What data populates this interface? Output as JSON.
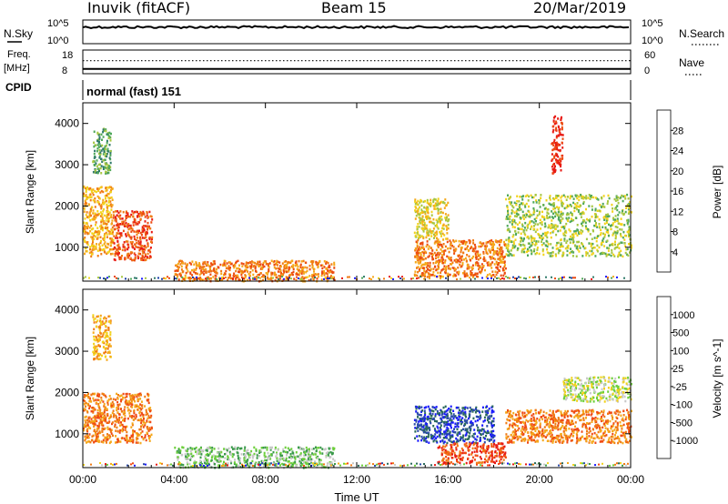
{
  "header": {
    "title_left": "Inuvik (fitACF)",
    "title_center": "Beam 15",
    "title_right": "20/Mar/2019"
  },
  "panels": {
    "nsky": {
      "left_label": "N.Sky",
      "right_label": "N.Search",
      "left_ticks": [
        "10^5",
        "10^0"
      ],
      "right_ticks": [
        "10^5",
        "10^0"
      ],
      "trace_level": 0.7
    },
    "freq": {
      "left_label_line1": "Freq.",
      "left_label_line2": "[MHz]",
      "right_label": "Nave",
      "left_ticks": [
        "18",
        "8"
      ],
      "right_ticks": [
        "60",
        "0"
      ],
      "freq_level": 0.2,
      "nave_level": 0.55
    },
    "cpid": {
      "left_label": "CPID",
      "mode_text": "normal (fast) 151"
    }
  },
  "chart_data": [
    {
      "type": "heatmap",
      "title": "",
      "xlabel": "Time UT",
      "ylabel": "Slant Range [km]",
      "x_ticks": [
        "00:00",
        "04:00",
        "08:00",
        "12:00",
        "16:00",
        "20:00",
        "00:00"
      ],
      "y_ticks": [
        1000,
        2000,
        3000,
        4000
      ],
      "xlim_hours": [
        0,
        24
      ],
      "ylim_km": [
        180,
        4500
      ],
      "colorbar": {
        "label": "Power [dB]",
        "ticks": [
          "28",
          "24",
          "20",
          "16",
          "12",
          "8",
          "4"
        ],
        "colors": [
          "#1a1aff",
          "#1a3fa8",
          "#2f7a6a",
          "#4fa85a",
          "#a6c640",
          "#f2d21a",
          "#f5a81a",
          "#f07a14",
          "#ec4a10",
          "#e81a14"
        ]
      },
      "regions": [
        {
          "x": [
            0,
            1.3
          ],
          "y": [
            800,
            2500
          ],
          "level": 6
        },
        {
          "x": [
            1.3,
            3.0
          ],
          "y": [
            700,
            1900
          ],
          "level": 8
        },
        {
          "x": [
            0.4,
            1.2
          ],
          "y": [
            2800,
            3900
          ],
          "level": 3
        },
        {
          "x": [
            4.0,
            11.0
          ],
          "y": [
            200,
            700
          ],
          "level": 7
        },
        {
          "x": [
            14.5,
            18.5
          ],
          "y": [
            300,
            1200
          ],
          "level": 7
        },
        {
          "x": [
            14.5,
            16.0
          ],
          "y": [
            1200,
            2200
          ],
          "level": 5
        },
        {
          "x": [
            18.5,
            24.0
          ],
          "y": [
            800,
            2300
          ],
          "level": 4
        },
        {
          "x": [
            20.5,
            21.0
          ],
          "y": [
            2800,
            4200
          ],
          "level": 9
        }
      ]
    },
    {
      "type": "heatmap",
      "title": "",
      "xlabel": "Time UT",
      "ylabel": "Slant Range [km]",
      "x_ticks": [
        "00:00",
        "04:00",
        "08:00",
        "12:00",
        "16:00",
        "20:00",
        "00:00"
      ],
      "y_ticks": [
        1000,
        2000,
        3000,
        4000
      ],
      "xlim_hours": [
        0,
        24
      ],
      "ylim_km": [
        180,
        4500
      ],
      "colorbar": {
        "label": "Velocity [m s^-1]",
        "ticks": [
          "1000",
          "500",
          "100",
          "25",
          "-25",
          "-100",
          "-500",
          "-1000"
        ],
        "colors": [
          "#e81a14",
          "#f04a14",
          "#f07a14",
          "#f5a81a",
          "#f2d21a",
          "#c8c8c8",
          "#6ccf3a",
          "#3a9a4a",
          "#2a6a5a",
          "#2a4aa8",
          "#1a1aff"
        ]
      },
      "regions": [
        {
          "x": [
            0,
            3.0
          ],
          "y": [
            800,
            2000
          ],
          "level": 2
        },
        {
          "x": [
            0.4,
            1.2
          ],
          "y": [
            2800,
            3900
          ],
          "level": 3
        },
        {
          "x": [
            4.0,
            11.0
          ],
          "y": [
            200,
            700
          ],
          "level": 6
        },
        {
          "x": [
            14.5,
            18.0
          ],
          "y": [
            800,
            1700
          ],
          "level": 9
        },
        {
          "x": [
            15.5,
            18.5
          ],
          "y": [
            300,
            800
          ],
          "level": 1
        },
        {
          "x": [
            18.5,
            24.0
          ],
          "y": [
            800,
            1600
          ],
          "level": 2
        },
        {
          "x": [
            21.0,
            24.0
          ],
          "y": [
            1800,
            2400
          ],
          "level": 5
        }
      ]
    }
  ]
}
